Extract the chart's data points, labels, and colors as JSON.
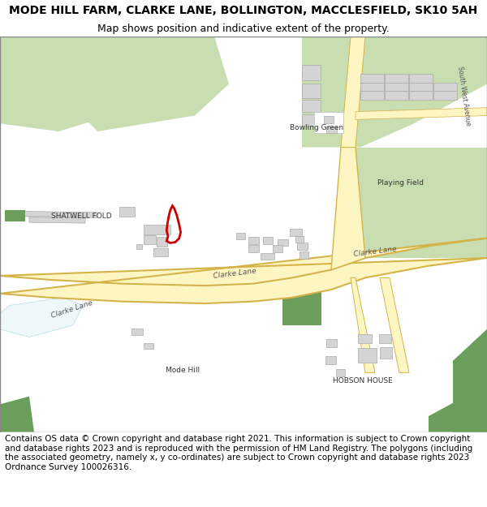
{
  "title": "MODE HILL FARM, CLARKE LANE, BOLLINGTON, MACCLESFIELD, SK10 5AH",
  "subtitle": "Map shows position and indicative extent of the property.",
  "footer": "Contains OS data © Crown copyright and database right 2021. This information is subject to Crown copyright and database rights 2023 and is reproduced with the permission of HM Land Registry. The polygons (including the associated geometry, namely x, y co-ordinates) are subject to Crown copyright and database rights 2023 Ordnance Survey 100026316.",
  "bg_color": "#ffffff",
  "map_bg": "#ffffff",
  "road_fill": "#fdf6c3",
  "road_edge": "#d4b44a",
  "green_light": "#c8ddb0",
  "green_dark": "#6a9e5a",
  "building_color": "#d4d4d4",
  "building_edge": "#aaaaaa",
  "plot_color": "#cc0000",
  "plot_linewidth": 2.0,
  "title_fontsize": 10,
  "subtitle_fontsize": 9,
  "footer_fontsize": 7.5,
  "label_color": "#333333",
  "road_label_color": "#555555"
}
